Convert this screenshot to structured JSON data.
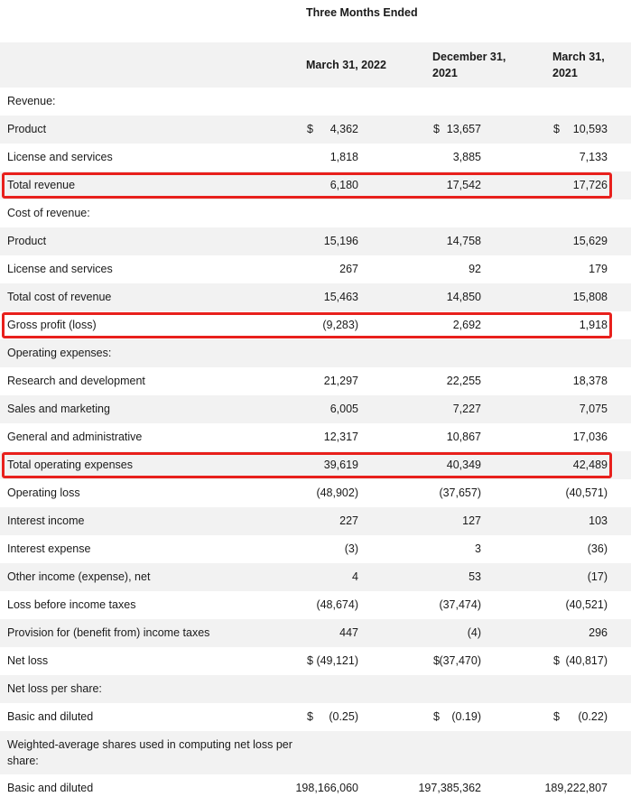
{
  "header": {
    "three_months": "Three Months Ended",
    "col1": "March 31, 2022",
    "col2": "December 31, 2021",
    "col3": "March 31, 2021"
  },
  "rows": [
    {
      "label": "Revenue:",
      "section": true
    },
    {
      "label": "Product",
      "cur": [
        "$",
        "$",
        "$"
      ],
      "v": [
        "4,362",
        "13,657",
        "10,593"
      ]
    },
    {
      "label": "License and services",
      "v": [
        "1,818",
        "3,885",
        "7,133"
      ]
    },
    {
      "label": "Total revenue",
      "v": [
        "6,180",
        "17,542",
        "17,726"
      ],
      "highlight": true
    },
    {
      "label": "Cost of revenue:",
      "section": true
    },
    {
      "label": "Product",
      "v": [
        "15,196",
        "14,758",
        "15,629"
      ]
    },
    {
      "label": "License and services",
      "v": [
        "267",
        "92",
        "179"
      ]
    },
    {
      "label": "Total cost of revenue",
      "v": [
        "15,463",
        "14,850",
        "15,808"
      ]
    },
    {
      "label": "Gross profit (loss)",
      "v": [
        "(9,283)",
        "2,692",
        "1,918"
      ],
      "highlight": true
    },
    {
      "label": "Operating expenses:",
      "section": true
    },
    {
      "label": "Research and development",
      "v": [
        "21,297",
        "22,255",
        "18,378"
      ]
    },
    {
      "label": "Sales and marketing",
      "v": [
        "6,005",
        "7,227",
        "7,075"
      ]
    },
    {
      "label": "General and administrative",
      "v": [
        "12,317",
        "10,867",
        "17,036"
      ]
    },
    {
      "label": "Total operating expenses",
      "v": [
        "39,619",
        "40,349",
        "42,489"
      ],
      "highlight": true
    },
    {
      "label": "Operating loss",
      "v": [
        "(48,902)",
        "(37,657)",
        "(40,571)"
      ]
    },
    {
      "label": "Interest income",
      "v": [
        "227",
        "127",
        "103"
      ]
    },
    {
      "label": "Interest expense",
      "v": [
        "(3)",
        "3",
        "(36)"
      ]
    },
    {
      "label": "Other income (expense), net",
      "v": [
        "4",
        "53",
        "(17)"
      ]
    },
    {
      "label": "Loss before income taxes",
      "v": [
        "(48,674)",
        "(37,474)",
        "(40,521)"
      ]
    },
    {
      "label": "Provision for (benefit from) income taxes",
      "v": [
        "447",
        "(4)",
        "296"
      ]
    },
    {
      "label": "Net loss",
      "cur": [
        "$",
        "$",
        "$"
      ],
      "v": [
        "(49,121)",
        "(37,470)",
        "(40,817)"
      ]
    },
    {
      "label": "Net loss per share:",
      "section": true
    },
    {
      "label": "Basic and diluted",
      "cur": [
        "$",
        "$",
        "$"
      ],
      "v": [
        "(0.25)",
        "(0.19)",
        "(0.22)"
      ]
    },
    {
      "label": "Weighted-average shares used in computing net loss per share:",
      "section": true,
      "tall": true
    },
    {
      "label": "Basic and diluted",
      "v": [
        "198,166,060",
        "197,385,362",
        "189,222,807"
      ]
    }
  ],
  "colors": {
    "highlight_border": "#e8201c",
    "stripe": "#f2f2f2"
  }
}
